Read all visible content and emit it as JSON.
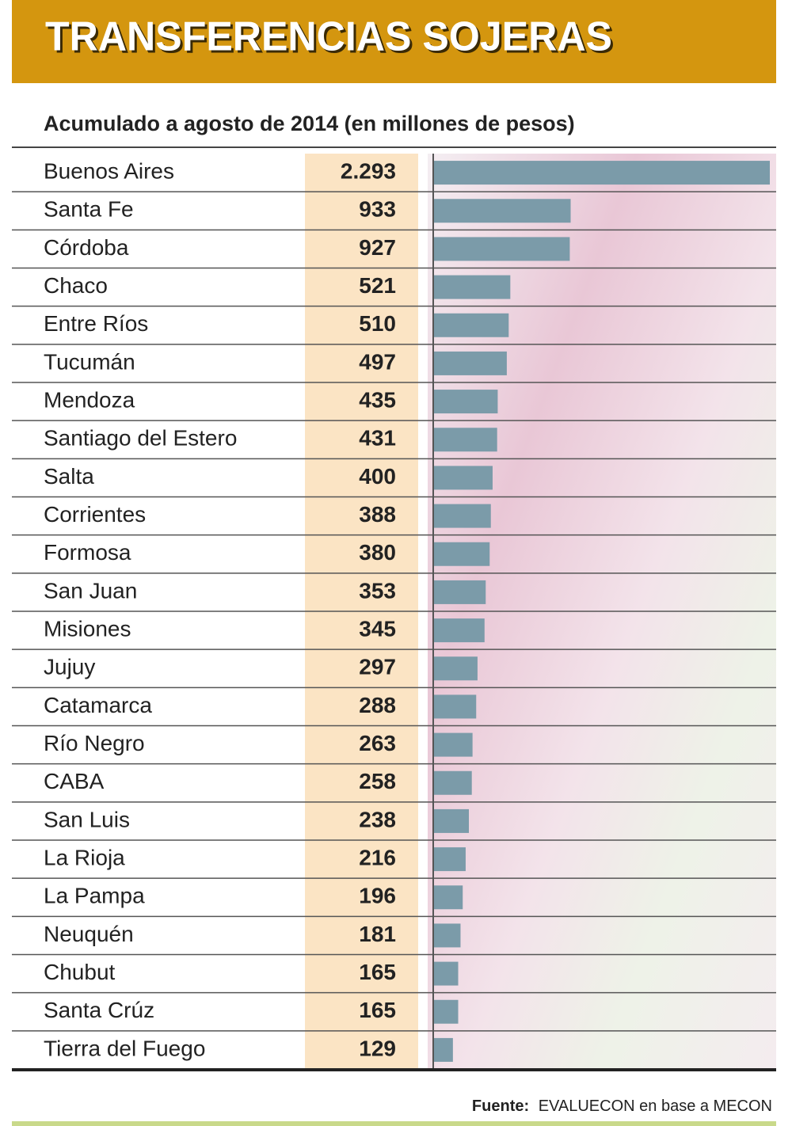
{
  "chart_data": {
    "type": "hbar",
    "title": "TRANSFERENCIAS SOJERAS",
    "subtitle": "Acumulado a agosto de 2014 (en millones de pesos)",
    "categories": [
      "Buenos Aires",
      "Santa Fe",
      "Córdoba",
      "Chaco",
      "Entre Ríos",
      "Tucumán",
      "Mendoza",
      "Santiago del Estero",
      "Salta",
      "Corrientes",
      "Formosa",
      "San Juan",
      "Misiones",
      "Jujuy",
      "Catamarca",
      "Río Negro",
      "CABA",
      "San Luis",
      "La Rioja",
      "La Pampa",
      "Neuquén",
      "Chubut",
      "Santa Crúz",
      "Tierra del Fuego"
    ],
    "values": [
      2293,
      933,
      927,
      521,
      510,
      497,
      435,
      431,
      400,
      388,
      380,
      353,
      345,
      297,
      288,
      263,
      258,
      238,
      216,
      196,
      181,
      165,
      165,
      129
    ],
    "value_labels": [
      "2.293",
      "933",
      "927",
      "521",
      "510",
      "497",
      "435",
      "431",
      "400",
      "388",
      "380",
      "353",
      "345",
      "297",
      "288",
      "263",
      "258",
      "238",
      "216",
      "196",
      "181",
      "165",
      "165",
      "129"
    ],
    "color": "#7b9ba9",
    "source_label": "Fuente:",
    "source": "EVALUECON en base a MECON"
  }
}
